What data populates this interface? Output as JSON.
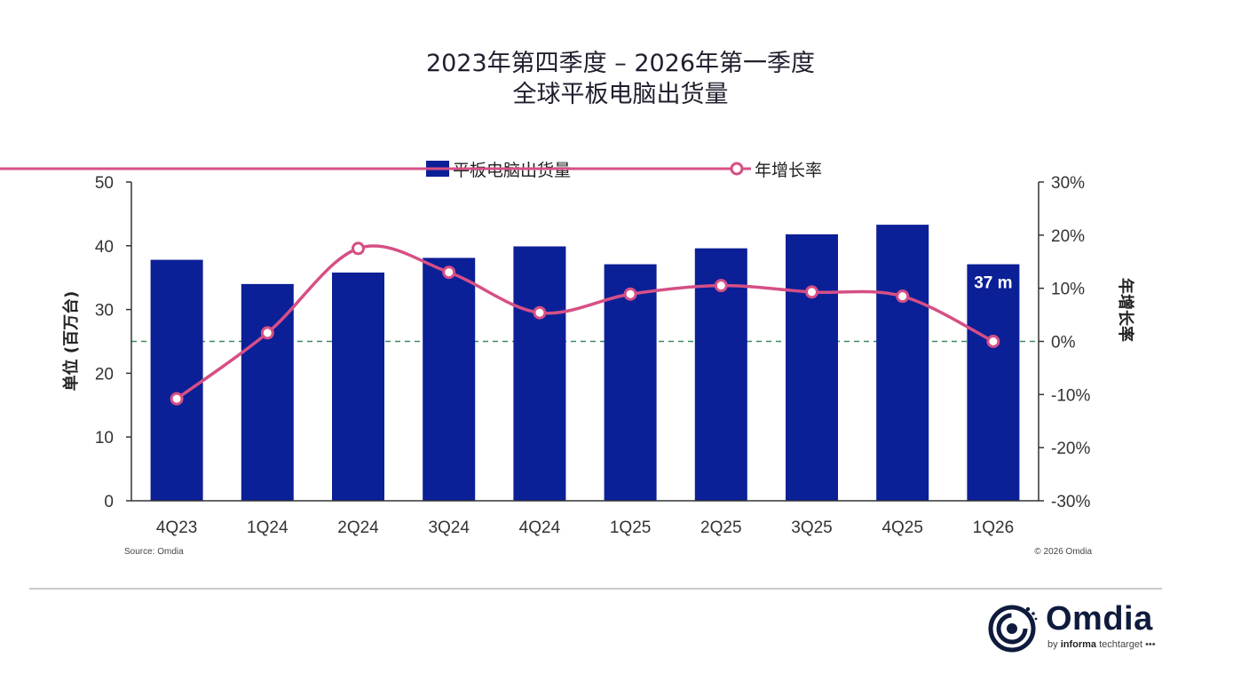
{
  "title_line1": "2023年第四季度 – 2026年第一季度",
  "title_line2": "全球平板电脑出货量",
  "source": "Source: Omdia",
  "copyright": "© 2026 Omdia",
  "logo": {
    "name": "Omdia",
    "by": "by",
    "brand": "informa",
    "brand_tail": "techtarget"
  },
  "colors": {
    "bar": "#0b1f96",
    "line": "#d64f86",
    "zero_line": "#3e8a5e",
    "axis": "#333333"
  },
  "chart_data": {
    "type": "bar",
    "categories": [
      "4Q23",
      "1Q24",
      "2Q24",
      "3Q24",
      "4Q24",
      "1Q25",
      "2Q25",
      "3Q25",
      "4Q25",
      "1Q26"
    ],
    "series": [
      {
        "name": "平板电脑出货量",
        "type": "bar",
        "axis": "left",
        "values": [
          37.8,
          34.0,
          35.8,
          38.1,
          39.9,
          37.1,
          39.6,
          41.8,
          43.3,
          37.1
        ]
      },
      {
        "name": "年增长率",
        "type": "line",
        "axis": "right",
        "values": [
          -10.8,
          1.6,
          17.5,
          13.0,
          5.4,
          8.9,
          10.5,
          9.3,
          8.5,
          0.0
        ]
      }
    ],
    "ylabel": "单位 (百万台)",
    "y2label": "年增长率",
    "ylim": [
      0,
      50
    ],
    "yticks": [
      "0",
      "10",
      "20",
      "30",
      "40",
      "50"
    ],
    "y2lim": [
      -30,
      30
    ],
    "y2ticks": [
      "-30%",
      "-20%",
      "-10%",
      "0%",
      "10%",
      "20%",
      "30%"
    ],
    "annotation": "37 m",
    "legend_position": "top-center"
  }
}
